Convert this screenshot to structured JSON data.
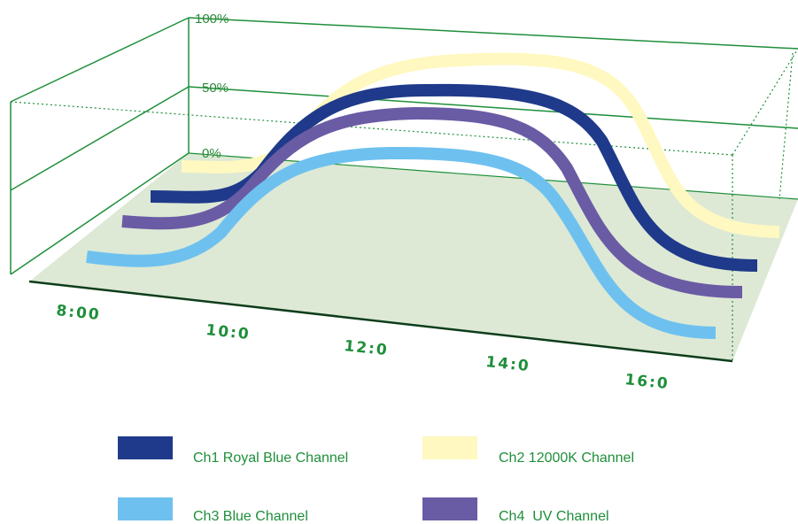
{
  "chart_data": {
    "type": "line",
    "title": "",
    "xlabel": "",
    "ylabel": "",
    "x_tick_labels": [
      "8:00",
      "10:0",
      "12:0",
      "14:0",
      "16:0"
    ],
    "y_tick_labels": [
      "0%",
      "50%",
      "100%"
    ],
    "ylim": [
      0,
      100
    ],
    "grid": true,
    "legend_position": "bottom",
    "series": [
      {
        "name": "Ch1 Royal Blue Channel",
        "color": "#1f3a8a",
        "points": [
          [
            7.5,
            0
          ],
          [
            8.5,
            0
          ],
          [
            10.5,
            45
          ],
          [
            12,
            45
          ],
          [
            14,
            45
          ],
          [
            15.5,
            0
          ],
          [
            16.5,
            0
          ]
        ]
      },
      {
        "name": "Ch2 12000K Channel",
        "color": "#fff8c0",
        "points": [
          [
            7.5,
            0
          ],
          [
            8.5,
            0
          ],
          [
            10.5,
            55
          ],
          [
            12,
            60
          ],
          [
            14,
            60
          ],
          [
            15.5,
            0
          ],
          [
            16.5,
            0
          ]
        ]
      },
      {
        "name": "Ch3 Blue Channel",
        "color": "#6ec1ef",
        "points": [
          [
            7.5,
            0
          ],
          [
            8.5,
            0
          ],
          [
            10.5,
            35
          ],
          [
            12,
            40
          ],
          [
            14,
            40
          ],
          [
            15.5,
            0
          ],
          [
            16.5,
            0
          ]
        ]
      },
      {
        "name": "Ch4  UV Channel",
        "color": "#6a5ba5",
        "points": [
          [
            7.5,
            0
          ],
          [
            8.5,
            0
          ],
          [
            10.5,
            35
          ],
          [
            12,
            40
          ],
          [
            14,
            40
          ],
          [
            15.5,
            0
          ],
          [
            16.5,
            0
          ]
        ]
      }
    ]
  }
}
